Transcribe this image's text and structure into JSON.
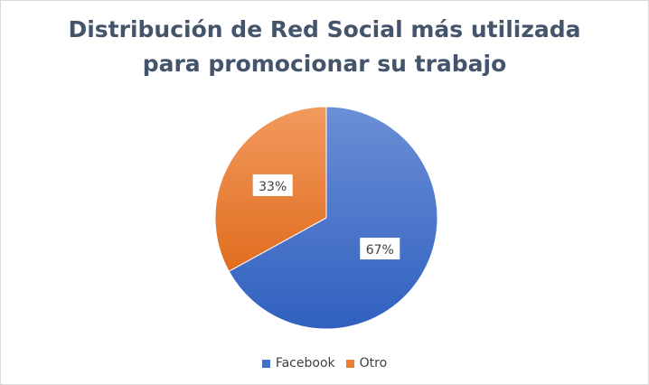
{
  "chart_data": {
    "type": "pie",
    "title_lines": [
      "Distribución de Red Social más utilizada",
      "para promocionar su trabajo"
    ],
    "slices": [
      {
        "name": "Facebook",
        "value": 67,
        "label": "67%",
        "color": "#4472c4"
      },
      {
        "name": "Otro",
        "value": 33,
        "label": "33%",
        "color": "#ed7d31"
      }
    ],
    "legend_position": "bottom"
  }
}
